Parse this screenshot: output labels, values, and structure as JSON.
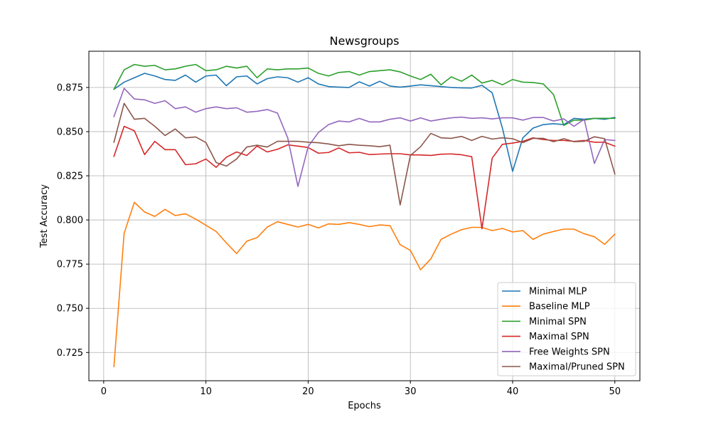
{
  "chart_data": {
    "type": "line",
    "title": "Newsgroups",
    "xlabel": "Epochs",
    "ylabel": "Test Accuracy",
    "xlim": [
      -1.45,
      52.45
    ],
    "ylim": [
      0.709,
      0.8955
    ],
    "xticks": [
      0,
      10,
      20,
      30,
      40,
      50
    ],
    "yticks": [
      0.725,
      0.75,
      0.775,
      0.8,
      0.825,
      0.85,
      0.875
    ],
    "xtick_labels": [
      "0",
      "10",
      "20",
      "30",
      "40",
      "50"
    ],
    "ytick_labels": [
      "0.725",
      "0.750",
      "0.775",
      "0.800",
      "0.825",
      "0.850",
      "0.875"
    ],
    "grid": true,
    "legend_position": "lower right",
    "x": [
      1,
      2,
      3,
      4,
      5,
      6,
      7,
      8,
      9,
      10,
      11,
      12,
      13,
      14,
      15,
      16,
      17,
      18,
      19,
      20,
      21,
      22,
      23,
      24,
      25,
      26,
      27,
      28,
      29,
      30,
      31,
      32,
      33,
      34,
      35,
      36,
      37,
      38,
      39,
      40,
      41,
      42,
      43,
      44,
      45,
      46,
      47,
      48,
      49,
      50
    ],
    "series": [
      {
        "name": "Minimal MLP",
        "color": "#1f77b4",
        "values": [
          0.874,
          0.878,
          0.8805,
          0.883,
          0.8815,
          0.8795,
          0.879,
          0.882,
          0.878,
          0.8815,
          0.882,
          0.876,
          0.881,
          0.8815,
          0.877,
          0.88,
          0.881,
          0.8805,
          0.878,
          0.8805,
          0.877,
          0.8755,
          0.8752,
          0.875,
          0.8782,
          0.8758,
          0.8785,
          0.8758,
          0.8752,
          0.8758,
          0.8765,
          0.876,
          0.8755,
          0.875,
          0.8748,
          0.8747,
          0.8762,
          0.872,
          0.852,
          0.8275,
          0.8465,
          0.852,
          0.854,
          0.8545,
          0.854,
          0.8575,
          0.857,
          0.8575,
          0.857,
          0.858
        ]
      },
      {
        "name": "Baseline MLP",
        "color": "#ff7f0e",
        "values": [
          0.717,
          0.7925,
          0.81,
          0.8045,
          0.802,
          0.806,
          0.8025,
          0.8035,
          0.8005,
          0.797,
          0.7935,
          0.787,
          0.781,
          0.788,
          0.79,
          0.796,
          0.799,
          0.7975,
          0.796,
          0.7975,
          0.7955,
          0.7978,
          0.7975,
          0.7985,
          0.7975,
          0.7962,
          0.7972,
          0.7968,
          0.786,
          0.7828,
          0.7718,
          0.778,
          0.789,
          0.792,
          0.7945,
          0.7958,
          0.7958,
          0.794,
          0.7952,
          0.7932,
          0.794,
          0.789,
          0.792,
          0.7935,
          0.7948,
          0.7948,
          0.7922,
          0.7905,
          0.7862,
          0.792
        ]
      },
      {
        "name": "Minimal SPN",
        "color": "#2ca02c",
        "values": [
          0.874,
          0.885,
          0.888,
          0.887,
          0.8875,
          0.885,
          0.8855,
          0.887,
          0.888,
          0.8845,
          0.885,
          0.887,
          0.886,
          0.887,
          0.8805,
          0.8855,
          0.885,
          0.8855,
          0.8855,
          0.886,
          0.883,
          0.8815,
          0.8835,
          0.884,
          0.882,
          0.884,
          0.8845,
          0.885,
          0.8838,
          0.8815,
          0.8795,
          0.8825,
          0.8765,
          0.881,
          0.8785,
          0.882,
          0.8775,
          0.879,
          0.8765,
          0.8795,
          0.878,
          0.8778,
          0.877,
          0.871,
          0.8535,
          0.8565,
          0.8565,
          0.8575,
          0.8575,
          0.8575
        ]
      },
      {
        "name": "Maximal SPN",
        "color": "#d62728",
        "values": [
          0.836,
          0.853,
          0.8505,
          0.837,
          0.8445,
          0.8398,
          0.8398,
          0.8313,
          0.8318,
          0.8345,
          0.8298,
          0.8355,
          0.8385,
          0.8365,
          0.8418,
          0.8385,
          0.84,
          0.8425,
          0.8418,
          0.841,
          0.8378,
          0.8382,
          0.8408,
          0.838,
          0.8383,
          0.837,
          0.8373,
          0.8375,
          0.8375,
          0.8368,
          0.8368,
          0.8365,
          0.8372,
          0.8374,
          0.8369,
          0.8358,
          0.795,
          0.835,
          0.8428,
          0.8435,
          0.8445,
          0.8465,
          0.8455,
          0.845,
          0.845,
          0.8445,
          0.845,
          0.844,
          0.844,
          0.8418
        ]
      },
      {
        "name": "Free Weights SPN",
        "color": "#9467bd",
        "values": [
          0.8585,
          0.8745,
          0.8685,
          0.868,
          0.866,
          0.8675,
          0.863,
          0.864,
          0.861,
          0.863,
          0.864,
          0.863,
          0.8635,
          0.861,
          0.8615,
          0.8625,
          0.8605,
          0.8465,
          0.819,
          0.8415,
          0.8495,
          0.854,
          0.856,
          0.8555,
          0.8575,
          0.8555,
          0.8555,
          0.857,
          0.8578,
          0.856,
          0.8578,
          0.856,
          0.857,
          0.8578,
          0.8582,
          0.8575,
          0.8578,
          0.8572,
          0.8578,
          0.8578,
          0.8565,
          0.858,
          0.858,
          0.856,
          0.8572,
          0.853,
          0.857,
          0.832,
          0.8455,
          0.845
        ]
      },
      {
        "name": "Maximal/Pruned SPN",
        "color": "#8c564b",
        "values": [
          0.844,
          0.866,
          0.857,
          0.8575,
          0.853,
          0.8478,
          0.8515,
          0.8465,
          0.847,
          0.8438,
          0.8325,
          0.8305,
          0.8345,
          0.8413,
          0.8423,
          0.8413,
          0.8445,
          0.8445,
          0.8445,
          0.844,
          0.8437,
          0.843,
          0.842,
          0.8428,
          0.8423,
          0.842,
          0.8415,
          0.8423,
          0.8085,
          0.8365,
          0.8415,
          0.849,
          0.8465,
          0.8462,
          0.8473,
          0.845,
          0.8473,
          0.8458,
          0.8465,
          0.846,
          0.8438,
          0.8462,
          0.8462,
          0.8443,
          0.846,
          0.8443,
          0.8445,
          0.8471,
          0.846,
          0.826
        ]
      }
    ]
  }
}
